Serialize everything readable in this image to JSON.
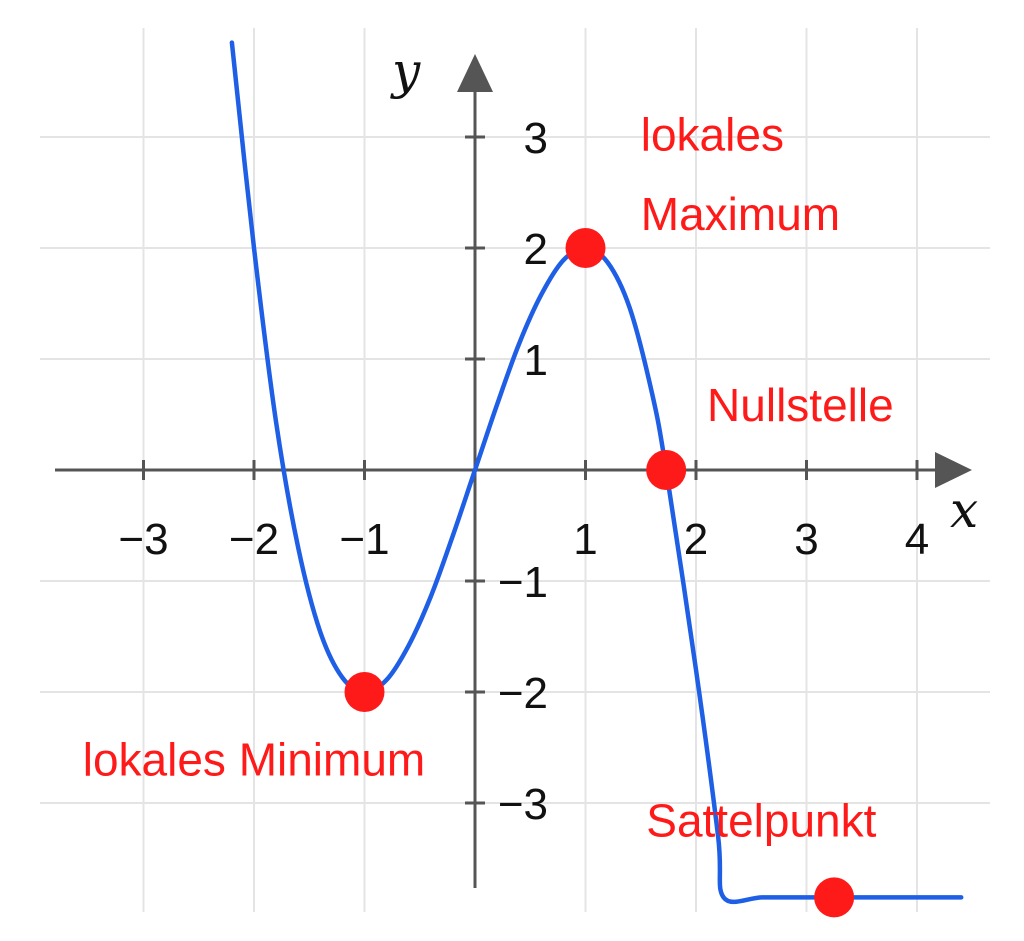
{
  "chart_data": {
    "type": "line",
    "title": "",
    "xlabel": "x",
    "ylabel": "y",
    "xlim": [
      -3.75,
      4.45
    ],
    "ylim": [
      -3.85,
      3.8
    ],
    "grid": true,
    "x_ticks": [
      -3,
      -2,
      -1,
      1,
      2,
      3,
      4
    ],
    "x_tick_labels": [
      "−3",
      "−2",
      "−1",
      "1",
      "2",
      "3",
      "4"
    ],
    "y_ticks": [
      3,
      2,
      1,
      -1,
      -2,
      -3
    ],
    "y_tick_labels": [
      "3",
      "2",
      "1",
      "−1",
      "−2",
      "−3"
    ],
    "series": [
      {
        "color": "#1f5fe6",
        "x": [
          -2.2,
          -2.0,
          -1.8,
          -1.6,
          -1.4,
          -1.2,
          -1.0,
          -0.8,
          -0.6,
          -0.4,
          -0.2,
          0.0,
          0.2,
          0.4,
          0.6,
          0.8,
          1.0,
          1.2,
          1.4,
          1.6,
          1.73,
          2.0,
          2.2,
          2.25,
          2.6,
          3.0,
          3.2,
          4.4
        ],
        "y": [
          3.85,
          2.0,
          0.43,
          -0.7,
          -1.46,
          -1.87,
          -2.0,
          -1.89,
          -1.58,
          -1.14,
          -0.59,
          0.0,
          0.59,
          1.14,
          1.58,
          1.89,
          2.0,
          1.87,
          1.46,
          0.7,
          0.0,
          -1.8,
          -3.3,
          -3.85,
          -3.85,
          -3.85,
          -3.85,
          -3.85
        ]
      }
    ],
    "annotations": [
      {
        "name": "lokales-maximum",
        "lines": [
          "lokales",
          "Maximum"
        ],
        "point": [
          1,
          2
        ],
        "anchor": [
          1.5,
          2.88
        ],
        "line_gap": 0.72
      },
      {
        "name": "nullstelle",
        "lines": [
          "Nullstelle"
        ],
        "point": [
          1.73,
          0
        ],
        "anchor": [
          2.1,
          0.44
        ],
        "line_gap": 0
      },
      {
        "name": "lokales-minimum",
        "lines": [
          "lokales Minimum"
        ],
        "point": [
          -1,
          -2
        ],
        "anchor": [
          -3.55,
          -2.75
        ],
        "line_gap": 0
      },
      {
        "name": "sattelpunkt",
        "lines": [
          "Sattelpunkt"
        ],
        "point": [
          3.25,
          -3.85
        ],
        "anchor": [
          1.55,
          -3.3
        ],
        "line_gap": 0
      }
    ],
    "point_color": "#ff1a1a",
    "label_color": "#ff1a1a",
    "axis_color": "#555555",
    "grid_color": "#e4e4e4"
  }
}
